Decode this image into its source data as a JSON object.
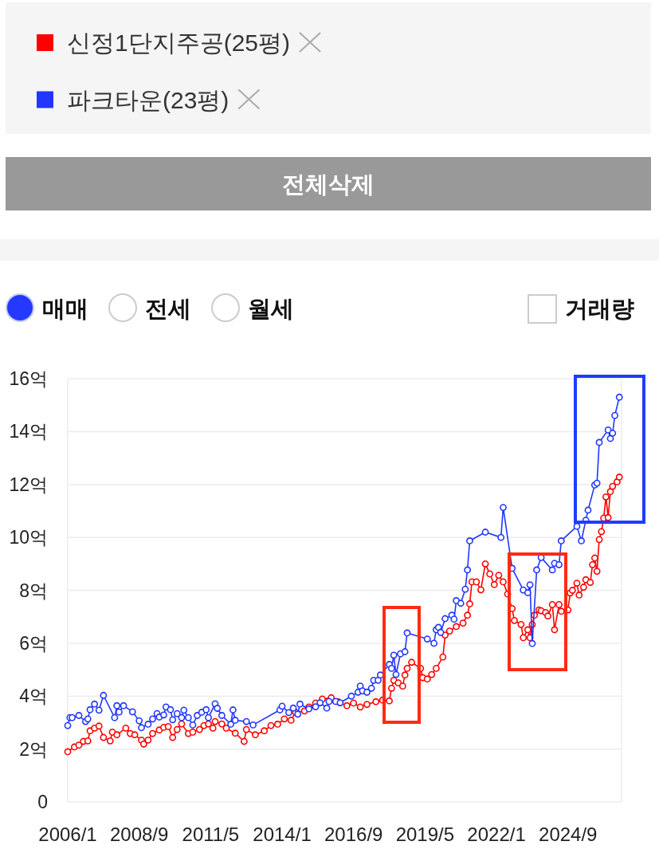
{
  "chart_data": {
    "type": "line",
    "series": [
      {
        "name": "신정1단지주공(25평)",
        "color": "#ff0000",
        "x": [
          "2006-01",
          "2006-04",
          "2006-06",
          "2006-08",
          "2006-10",
          "2006-11",
          "2007-01",
          "2007-03",
          "2007-05",
          "2007-08",
          "2007-09",
          "2007-11",
          "2008-03",
          "2008-05",
          "2008-07",
          "2008-10",
          "2008-11",
          "2009-01",
          "2009-03",
          "2009-06",
          "2009-08",
          "2009-10",
          "2009-12",
          "2010-02",
          "2010-04",
          "2010-07",
          "2010-09",
          "2010-12",
          "2011-02",
          "2011-04",
          "2011-06",
          "2011-07",
          "2011-10",
          "2011-12",
          "2012-04",
          "2012-08",
          "2012-09",
          "2013-01",
          "2013-05",
          "2013-08",
          "2013-11",
          "2014-02",
          "2014-05",
          "2014-07",
          "2014-11",
          "2015-01",
          "2015-04",
          "2015-07",
          "2015-11",
          "2016-02",
          "2016-06",
          "2016-09",
          "2016-12",
          "2017-03",
          "2017-07",
          "2017-10",
          "2018-01",
          "2018-02",
          "2018-03",
          "2018-05",
          "2018-07",
          "2018-08",
          "2018-09",
          "2018-11",
          "2019-03",
          "2019-04",
          "2019-06",
          "2019-08",
          "2019-10",
          "2020-01",
          "2020-02",
          "2020-04",
          "2020-07",
          "2020-10",
          "2020-12",
          "2021-01",
          "2021-02",
          "2021-04",
          "2021-06",
          "2021-08",
          "2021-10",
          "2021-12",
          "2022-02",
          "2022-04",
          "2022-06",
          "2022-08",
          "2022-09",
          "2022-12",
          "2023-01",
          "2023-03",
          "2023-04",
          "2023-05",
          "2023-06",
          "2023-08",
          "2023-09",
          "2023-11",
          "2023-12",
          "2024-02",
          "2024-03",
          "2024-05",
          "2024-06",
          "2024-09",
          "2024-10",
          "2024-11",
          "2025-01",
          "2025-02",
          "2025-04",
          "2025-05",
          "2025-07",
          "2025-08",
          "2025-09",
          "2025-10",
          "2025-11",
          "2025-12",
          "2026-01",
          "2026-02",
          "2026-03",
          "2026-04",
          "2026-05",
          "2026-07",
          "2026-08"
        ],
        "values": [
          1.9,
          2.08,
          2.15,
          2.29,
          2.31,
          2.69,
          2.79,
          2.87,
          2.44,
          2.31,
          2.64,
          2.54,
          2.79,
          2.59,
          2.54,
          2.34,
          2.19,
          2.34,
          2.59,
          2.72,
          2.82,
          2.85,
          2.44,
          2.74,
          2.95,
          2.59,
          2.64,
          2.74,
          2.89,
          2.95,
          2.79,
          3.04,
          2.95,
          2.79,
          2.6,
          2.29,
          2.74,
          2.54,
          2.69,
          2.89,
          2.94,
          3.14,
          3.09,
          3.39,
          3.44,
          3.59,
          3.74,
          3.89,
          3.94,
          3.79,
          3.64,
          3.74,
          3.59,
          3.69,
          3.79,
          3.85,
          3.82,
          4.3,
          4.6,
          4.5,
          4.38,
          4.8,
          5.05,
          5.28,
          5.05,
          4.7,
          4.65,
          4.82,
          5.05,
          5.48,
          6.31,
          6.46,
          6.63,
          6.76,
          7.06,
          7.49,
          8.32,
          8.32,
          8.02,
          9.0,
          8.62,
          8.22,
          8.57,
          8.32,
          7.86,
          7.31,
          6.86,
          6.71,
          6.21,
          6.51,
          6.21,
          6.71,
          7.06,
          7.26,
          7.23,
          7.16,
          7.03,
          7.46,
          6.51,
          7.46,
          7.21,
          7.26,
          7.9,
          8.0,
          8.27,
          7.82,
          8.12,
          8.4,
          8.3,
          8.97,
          9.22,
          8.72,
          9.92,
          10.22,
          10.73,
          11.53,
          10.75,
          11.73,
          11.93,
          12.1,
          12.28
        ]
      },
      {
        "name": "파크타운(23평)",
        "color": "#2136ff",
        "x": [
          "2006-01",
          "2006-02",
          "2006-03",
          "2006-06",
          "2006-09",
          "2006-10",
          "2006-11",
          "2007-01",
          "2007-03",
          "2007-05",
          "2007-10",
          "2007-11",
          "2007-12",
          "2008-02",
          "2008-06",
          "2008-09",
          "2008-10",
          "2009-01",
          "2009-03",
          "2009-05",
          "2009-06",
          "2009-08",
          "2009-09",
          "2009-11",
          "2009-12",
          "2010-02",
          "2010-04",
          "2010-05",
          "2010-07",
          "2010-09",
          "2010-11",
          "2011-01",
          "2011-03",
          "2011-04",
          "2011-07",
          "2011-08",
          "2011-10",
          "2012-02",
          "2012-03",
          "2012-04",
          "2012-09",
          "2012-12",
          "2013-12",
          "2014-01",
          "2014-04",
          "2014-06",
          "2014-08",
          "2014-09",
          "2015-01",
          "2015-04",
          "2015-06",
          "2015-09",
          "2015-10",
          "2016-01",
          "2016-03",
          "2016-08",
          "2016-11",
          "2016-12",
          "2017-01",
          "2017-03",
          "2017-05",
          "2017-06",
          "2017-08",
          "2017-09",
          "2018-01",
          "2018-02",
          "2018-03",
          "2018-04",
          "2018-06",
          "2018-08",
          "2018-09",
          "2019-06",
          "2019-09",
          "2019-10",
          "2019-11",
          "2019-12",
          "2020-02",
          "2020-05",
          "2020-06",
          "2020-07",
          "2020-09",
          "2020-11",
          "2020-12",
          "2021-01",
          "2021-08",
          "2022-03",
          "2022-04",
          "2022-08",
          "2023-01",
          "2023-03",
          "2023-04",
          "2023-05",
          "2023-07",
          "2023-09",
          "2024-02",
          "2024-03",
          "2024-05",
          "2024-06",
          "2025-01",
          "2025-03",
          "2025-05",
          "2025-06",
          "2025-09",
          "2025-10",
          "2025-11",
          "2026-03",
          "2026-04",
          "2026-05",
          "2026-06",
          "2026-08"
        ],
        "values": [
          2.89,
          3.19,
          3.19,
          3.27,
          3.04,
          3.14,
          3.49,
          3.7,
          3.47,
          4.03,
          3.19,
          3.64,
          3.4,
          3.64,
          3.41,
          3.07,
          2.81,
          2.94,
          3.14,
          3.34,
          3.21,
          3.29,
          3.59,
          3.49,
          3.11,
          3.34,
          3.19,
          3.47,
          3.19,
          2.91,
          3.27,
          3.39,
          3.49,
          3.19,
          3.71,
          3.54,
          3.27,
          2.94,
          3.48,
          3.09,
          3.04,
          2.91,
          3.48,
          3.62,
          3.38,
          3.55,
          3.32,
          3.7,
          3.52,
          3.6,
          3.75,
          3.55,
          3.8,
          3.8,
          3.75,
          4.0,
          4.15,
          4.38,
          4.2,
          4.15,
          4.3,
          4.6,
          4.6,
          4.8,
          5.2,
          5.05,
          5.55,
          4.82,
          5.6,
          5.68,
          6.39,
          6.16,
          6.0,
          6.51,
          6.6,
          6.41,
          6.93,
          7.06,
          6.91,
          7.61,
          7.51,
          8.04,
          8.77,
          9.87,
          10.2,
          10.0,
          11.13,
          8.83,
          8.01,
          7.91,
          8.21,
          5.99,
          8.77,
          9.24,
          8.77,
          9.02,
          8.97,
          9.87,
          10.42,
          9.87,
          10.65,
          11.03,
          11.98,
          12.05,
          13.59,
          14.06,
          13.74,
          13.94,
          14.61,
          15.3
        ]
      }
    ],
    "xlim": [
      "2006-01",
      "2026-09"
    ],
    "xticks": [
      {
        "value": "2006-01",
        "label": "2006/1"
      },
      {
        "value": "2008-09",
        "label": "2008/9"
      },
      {
        "value": "2011-05",
        "label": "2011/5"
      },
      {
        "value": "2014-01",
        "label": "2014/1"
      },
      {
        "value": "2016-09",
        "label": "2016/9"
      },
      {
        "value": "2019-05",
        "label": "2019/5"
      },
      {
        "value": "2022-01",
        "label": "2022/1"
      },
      {
        "value": "2024-09",
        "label": "2024/9"
      }
    ],
    "ylim": [
      0,
      16
    ],
    "yticks": [
      0,
      {
        "value": 2,
        "label": "2억"
      },
      {
        "value": 4,
        "label": "4억"
      },
      {
        "value": 6,
        "label": "6억"
      },
      {
        "value": 8,
        "label": "8억"
      },
      {
        "value": 10,
        "label": "10억"
      },
      {
        "value": 12,
        "label": "12억"
      },
      {
        "value": 14,
        "label": "14억"
      },
      {
        "value": 16,
        "label": "16억"
      }
    ],
    "grid": "y",
    "legend": "top left",
    "marker": "circle",
    "line_style": "solid",
    "annotations": [
      "전체삭제",
      "매매",
      "전세",
      "월세",
      "거래량"
    ]
  }
}
